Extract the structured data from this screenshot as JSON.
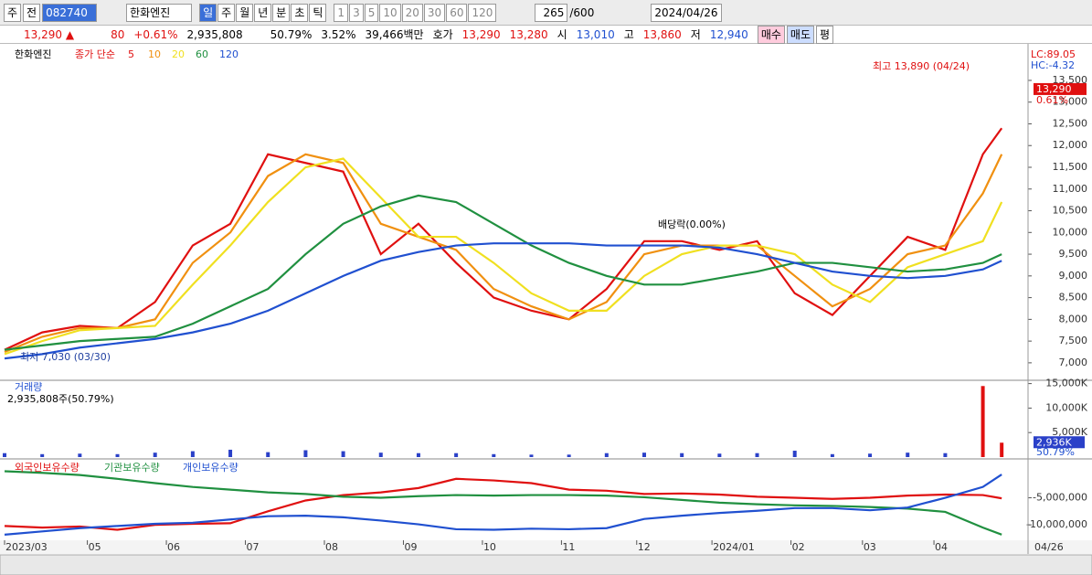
{
  "toolbar": {
    "items": [
      "주",
      "전"
    ],
    "code": "082740",
    "name": "한화엔진",
    "periods": [
      "일",
      "주",
      "월",
      "년",
      "분",
      "초",
      "틱"
    ],
    "intervals": [
      "1",
      "3",
      "5",
      "10",
      "20",
      "30",
      "60",
      "120"
    ],
    "count": "265",
    "max": "/600",
    "date": "2024/04/26"
  },
  "quote": {
    "price": "13,290",
    "arrow": "▲",
    "change": "80",
    "rate": "+0.61%",
    "volume": "2,935,808",
    "vol_ratio": "50.79%",
    "turnover": "3.52%",
    "amount": "39,466백만",
    "bid_label": "호가",
    "ask": "13,290",
    "bid": "13,280",
    "open_label": "시",
    "open": "13,010",
    "high_label": "고",
    "high": "13,860",
    "low_label": "저",
    "low": "12,940",
    "buttons": [
      "매수",
      "매도",
      "평"
    ]
  },
  "chart_data": [
    {
      "type": "line",
      "title": "한화엔진",
      "legend_label": "종가 단순",
      "x": [
        0,
        10,
        20,
        30,
        40,
        50,
        60,
        70,
        80,
        90,
        100,
        110,
        120,
        130,
        140,
        150,
        160,
        170,
        180,
        190,
        200,
        210,
        220,
        230,
        240,
        250,
        260,
        265
      ],
      "xlim": [
        0,
        272
      ],
      "xticks": [
        {
          "value": 0,
          "label": "2023/03"
        },
        {
          "value": 22,
          "label": "05"
        },
        {
          "value": 43,
          "label": "06"
        },
        {
          "value": 64,
          "label": "07"
        },
        {
          "value": 85,
          "label": "08"
        },
        {
          "value": 106,
          "label": "09"
        },
        {
          "value": 127,
          "label": "10"
        },
        {
          "value": 148,
          "label": "11"
        },
        {
          "value": 168,
          "label": "12"
        },
        {
          "value": 188,
          "label": "2024/01"
        },
        {
          "value": 209,
          "label": "02"
        },
        {
          "value": 228,
          "label": "03"
        },
        {
          "value": 247,
          "label": "04"
        }
      ],
      "end_label": "04/26",
      "ylim": [
        6640,
        14130
      ],
      "yticks": [
        {
          "value": 7000,
          "label": "7,000"
        },
        {
          "value": 7500,
          "label": "7,500"
        },
        {
          "value": 8000,
          "label": "8,000"
        },
        {
          "value": 8500,
          "label": "8,500"
        },
        {
          "value": 9000,
          "label": "9,000"
        },
        {
          "value": 9500,
          "label": "9,500"
        },
        {
          "value": 10000,
          "label": "10,000"
        },
        {
          "value": 10500,
          "label": "10,500"
        },
        {
          "value": 11000,
          "label": "11,000"
        },
        {
          "value": 11500,
          "label": "11,500"
        },
        {
          "value": 12000,
          "label": "12,000"
        },
        {
          "value": 12500,
          "label": "12,500"
        },
        {
          "value": 13000,
          "label": "13,000"
        },
        {
          "value": 13500,
          "label": "13,500"
        }
      ],
      "series": [
        {
          "name": "5",
          "color": "#e01010",
          "values": [
            7300,
            7700,
            7850,
            7800,
            8400,
            9700,
            10200,
            11800,
            11600,
            11400,
            9500,
            10200,
            9300,
            8500,
            8200,
            8000,
            8700,
            9800,
            9800,
            9600,
            9800,
            8600,
            8100,
            9000,
            9900,
            9600,
            11800,
            12400
          ]
        },
        {
          "name": "10",
          "color": "#f09010",
          "values": [
            7250,
            7600,
            7800,
            7800,
            8000,
            9300,
            10000,
            11300,
            11800,
            11600,
            10200,
            9900,
            9600,
            8700,
            8300,
            8000,
            8400,
            9500,
            9700,
            9700,
            9700,
            9000,
            8300,
            8700,
            9500,
            9700,
            10900,
            11800
          ]
        },
        {
          "name": "20",
          "color": "#f0e020",
          "values": [
            7200,
            7500,
            7750,
            7800,
            7850,
            8800,
            9700,
            10700,
            11500,
            11700,
            10800,
            9900,
            9900,
            9300,
            8600,
            8200,
            8200,
            9000,
            9500,
            9700,
            9700,
            9500,
            8800,
            8400,
            9200,
            9500,
            9800,
            10700
          ]
        },
        {
          "name": "60",
          "color": "#209040",
          "values": [
            7300,
            7400,
            7500,
            7550,
            7600,
            7900,
            8300,
            8700,
            9500,
            10200,
            10600,
            10850,
            10700,
            10200,
            9700,
            9300,
            9000,
            8800,
            8800,
            8950,
            9100,
            9300,
            9300,
            9200,
            9100,
            9150,
            9300,
            9500
          ]
        },
        {
          "name": "120",
          "color": "#2050d0",
          "values": [
            7100,
            7200,
            7350,
            7450,
            7550,
            7700,
            7900,
            8200,
            8600,
            9000,
            9350,
            9550,
            9700,
            9750,
            9750,
            9750,
            9700,
            9700,
            9700,
            9650,
            9500,
            9300,
            9100,
            9000,
            8950,
            9000,
            9150,
            9350
          ]
        }
      ],
      "annotations": [
        "최고 13,890 (04/24)",
        "최저 7,030 (03/30)",
        "배당락(0.00%)",
        "LC:89.05",
        "HC:-4.32",
        "0.61%"
      ],
      "last_label": "13,290"
    },
    {
      "type": "bar",
      "title": "거래량",
      "subtitle": "2,935,808주(50.79%)",
      "x": [
        0,
        10,
        20,
        30,
        40,
        50,
        60,
        70,
        80,
        90,
        100,
        110,
        120,
        130,
        140,
        150,
        160,
        170,
        180,
        190,
        200,
        210,
        220,
        230,
        240,
        250,
        260,
        265
      ],
      "values": [
        800,
        600,
        700,
        600,
        900,
        1200,
        1500,
        1000,
        1400,
        1200,
        900,
        800,
        800,
        600,
        500,
        500,
        800,
        900,
        800,
        700,
        800,
        1300,
        600,
        700,
        900,
        800,
        14500,
        2936
      ],
      "value_labels": [
        null,
        null,
        null,
        null,
        null,
        null,
        null,
        null,
        null,
        null,
        null,
        null,
        null,
        null,
        null,
        null,
        null,
        null,
        null,
        null,
        null,
        null,
        null,
        null,
        null,
        null,
        null,
        "2,936K"
      ],
      "color": "#2a40c8",
      "ylim": [
        0,
        15300
      ],
      "yticks": [
        {
          "value": 5000,
          "label": "5,000K"
        },
        {
          "value": 10000,
          "label": "10,000K"
        },
        {
          "value": 15000,
          "label": "15,000K"
        }
      ],
      "ratio_label": "50.79%"
    },
    {
      "type": "line",
      "x": [
        0,
        10,
        20,
        30,
        40,
        50,
        60,
        70,
        80,
        90,
        100,
        110,
        120,
        130,
        140,
        150,
        160,
        170,
        180,
        190,
        200,
        210,
        220,
        230,
        240,
        250,
        260,
        265
      ],
      "ylim": [
        -12670000,
        1500000
      ],
      "yticks": [
        {
          "value": -5000000,
          "label": "-5,000,000"
        },
        {
          "value": -10000000,
          "label": "-10,000,000"
        }
      ],
      "series": [
        {
          "name": "외국인보유수량",
          "color": "#e01010",
          "values": [
            -10200000,
            -10500000,
            -10300000,
            -10900000,
            -10000000,
            -9800000,
            -9700000,
            -7500000,
            -5500000,
            -4500000,
            -4000000,
            -3200000,
            -1500000,
            -1800000,
            -2300000,
            -3500000,
            -3700000,
            -4300000,
            -4200000,
            -4400000,
            -4800000,
            -5000000,
            -5200000,
            -5000000,
            -4600000,
            -4400000,
            -4500000,
            -5100000
          ]
        },
        {
          "name": "기관보유수량",
          "color": "#209040",
          "values": [
            -100000,
            -400000,
            -800000,
            -1500000,
            -2300000,
            -3000000,
            -3500000,
            -4000000,
            -4300000,
            -4800000,
            -5000000,
            -4700000,
            -4500000,
            -4600000,
            -4500000,
            -4500000,
            -4600000,
            -4900000,
            -5400000,
            -5900000,
            -6200000,
            -6400000,
            -6500000,
            -6700000,
            -7000000,
            -7600000,
            -10500000,
            -11800000
          ]
        },
        {
          "name": "개인보유수량",
          "color": "#2050d0",
          "values": [
            -11800000,
            -11200000,
            -10600000,
            -10200000,
            -9800000,
            -9600000,
            -9000000,
            -8400000,
            -8300000,
            -8600000,
            -9200000,
            -9900000,
            -10800000,
            -10900000,
            -10700000,
            -10800000,
            -10600000,
            -8900000,
            -8300000,
            -7800000,
            -7400000,
            -6900000,
            -6900000,
            -7300000,
            -6800000,
            -5000000,
            -3000000,
            -700000
          ]
        }
      ]
    }
  ]
}
